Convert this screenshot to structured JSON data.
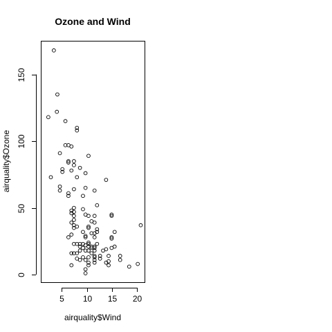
{
  "chart_data": {
    "type": "scatter",
    "title": "Ozone and Wind",
    "xlabel": "airquality$Wind",
    "ylabel": "airquality$Ozone",
    "xlim": [
      1.7,
      20.7
    ],
    "ylim": [
      1,
      168
    ],
    "x_ticks": [
      5,
      10,
      15,
      20
    ],
    "y_ticks": [
      0,
      50,
      100,
      150
    ],
    "grid": false,
    "points": [
      {
        "x": 2.3,
        "y": 118
      },
      {
        "x": 2.8,
        "y": 73
      },
      {
        "x": 3.4,
        "y": 168
      },
      {
        "x": 4.0,
        "y": 122
      },
      {
        "x": 4.1,
        "y": 135
      },
      {
        "x": 4.6,
        "y": 91
      },
      {
        "x": 4.6,
        "y": 66
      },
      {
        "x": 4.6,
        "y": 63
      },
      {
        "x": 5.1,
        "y": 79
      },
      {
        "x": 5.1,
        "y": 77
      },
      {
        "x": 5.7,
        "y": 115
      },
      {
        "x": 5.7,
        "y": 97
      },
      {
        "x": 6.3,
        "y": 97
      },
      {
        "x": 6.3,
        "y": 85
      },
      {
        "x": 6.3,
        "y": 84
      },
      {
        "x": 6.3,
        "y": 61
      },
      {
        "x": 6.3,
        "y": 59
      },
      {
        "x": 6.3,
        "y": 28
      },
      {
        "x": 6.9,
        "y": 96
      },
      {
        "x": 6.9,
        "y": 78
      },
      {
        "x": 6.9,
        "y": 48
      },
      {
        "x": 6.9,
        "y": 46
      },
      {
        "x": 6.9,
        "y": 39
      },
      {
        "x": 6.9,
        "y": 30
      },
      {
        "x": 6.9,
        "y": 16
      },
      {
        "x": 6.9,
        "y": 7
      },
      {
        "x": 7.4,
        "y": 85
      },
      {
        "x": 7.4,
        "y": 82
      },
      {
        "x": 7.4,
        "y": 64
      },
      {
        "x": 7.4,
        "y": 50
      },
      {
        "x": 7.4,
        "y": 47
      },
      {
        "x": 7.4,
        "y": 44
      },
      {
        "x": 7.4,
        "y": 41
      },
      {
        "x": 7.4,
        "y": 37
      },
      {
        "x": 7.4,
        "y": 35
      },
      {
        "x": 7.4,
        "y": 23
      },
      {
        "x": 7.4,
        "y": 16
      },
      {
        "x": 8.0,
        "y": 110
      },
      {
        "x": 8.0,
        "y": 108
      },
      {
        "x": 8.0,
        "y": 73
      },
      {
        "x": 8.0,
        "y": 36
      },
      {
        "x": 8.0,
        "y": 23
      },
      {
        "x": 8.0,
        "y": 16
      },
      {
        "x": 8.0,
        "y": 12
      },
      {
        "x": 8.6,
        "y": 80
      },
      {
        "x": 8.6,
        "y": 23
      },
      {
        "x": 8.6,
        "y": 21
      },
      {
        "x": 8.6,
        "y": 18
      },
      {
        "x": 8.6,
        "y": 11
      },
      {
        "x": 9.2,
        "y": 59
      },
      {
        "x": 9.2,
        "y": 49
      },
      {
        "x": 9.2,
        "y": 32
      },
      {
        "x": 9.2,
        "y": 23
      },
      {
        "x": 9.2,
        "y": 20
      },
      {
        "x": 9.2,
        "y": 13
      },
      {
        "x": 9.7,
        "y": 76
      },
      {
        "x": 9.7,
        "y": 65
      },
      {
        "x": 9.7,
        "y": 45
      },
      {
        "x": 9.7,
        "y": 29
      },
      {
        "x": 9.7,
        "y": 28
      },
      {
        "x": 9.7,
        "y": 22
      },
      {
        "x": 9.7,
        "y": 18
      },
      {
        "x": 9.7,
        "y": 11
      },
      {
        "x": 9.7,
        "y": 4
      },
      {
        "x": 9.7,
        "y": 1
      },
      {
        "x": 10.3,
        "y": 89
      },
      {
        "x": 10.3,
        "y": 44
      },
      {
        "x": 10.3,
        "y": 36
      },
      {
        "x": 10.3,
        "y": 35
      },
      {
        "x": 10.3,
        "y": 24
      },
      {
        "x": 10.3,
        "y": 23
      },
      {
        "x": 10.3,
        "y": 21
      },
      {
        "x": 10.3,
        "y": 18
      },
      {
        "x": 10.3,
        "y": 13
      },
      {
        "x": 10.3,
        "y": 9
      },
      {
        "x": 10.3,
        "y": 7
      },
      {
        "x": 10.9,
        "y": 40
      },
      {
        "x": 10.9,
        "y": 31
      },
      {
        "x": 10.9,
        "y": 21
      },
      {
        "x": 10.9,
        "y": 20
      },
      {
        "x": 10.9,
        "y": 16
      },
      {
        "x": 11.5,
        "y": 63
      },
      {
        "x": 11.5,
        "y": 44
      },
      {
        "x": 11.5,
        "y": 39
      },
      {
        "x": 11.5,
        "y": 31
      },
      {
        "x": 11.5,
        "y": 28
      },
      {
        "x": 11.5,
        "y": 21
      },
      {
        "x": 11.5,
        "y": 20
      },
      {
        "x": 11.5,
        "y": 18
      },
      {
        "x": 11.5,
        "y": 14
      },
      {
        "x": 11.5,
        "y": 13
      },
      {
        "x": 11.5,
        "y": 11
      },
      {
        "x": 11.5,
        "y": 9
      },
      {
        "x": 12.0,
        "y": 52
      },
      {
        "x": 12.0,
        "y": 34
      },
      {
        "x": 12.0,
        "y": 32
      },
      {
        "x": 12.0,
        "y": 23
      },
      {
        "x": 12.6,
        "y": 14
      },
      {
        "x": 12.6,
        "y": 12
      },
      {
        "x": 13.2,
        "y": 18
      },
      {
        "x": 13.8,
        "y": 71
      },
      {
        "x": 13.8,
        "y": 19
      },
      {
        "x": 13.8,
        "y": 9
      },
      {
        "x": 14.3,
        "y": 14
      },
      {
        "x": 14.3,
        "y": 10
      },
      {
        "x": 14.3,
        "y": 7
      },
      {
        "x": 14.9,
        "y": 45
      },
      {
        "x": 14.9,
        "y": 44
      },
      {
        "x": 14.9,
        "y": 28
      },
      {
        "x": 14.9,
        "y": 27
      },
      {
        "x": 14.9,
        "y": 20
      },
      {
        "x": 15.5,
        "y": 32
      },
      {
        "x": 15.5,
        "y": 21
      },
      {
        "x": 16.6,
        "y": 14
      },
      {
        "x": 16.6,
        "y": 11
      },
      {
        "x": 18.4,
        "y": 6
      },
      {
        "x": 20.1,
        "y": 8
      },
      {
        "x": 20.7,
        "y": 37
      }
    ]
  }
}
